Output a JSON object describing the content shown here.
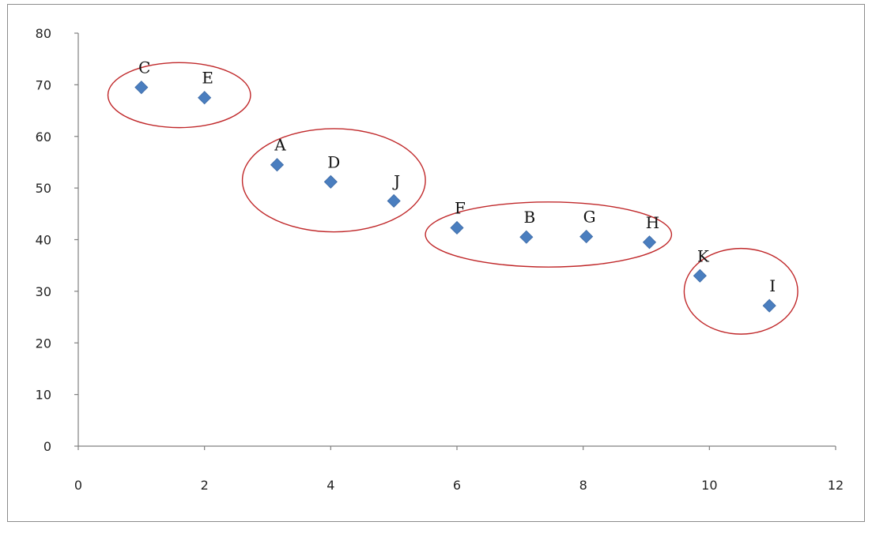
{
  "chart_data": {
    "type": "scatter",
    "xlim": [
      0,
      12
    ],
    "ylim": [
      0,
      80
    ],
    "x_ticks": [
      0,
      2,
      4,
      6,
      8,
      10,
      12
    ],
    "y_ticks": [
      0,
      10,
      20,
      30,
      40,
      50,
      60,
      70,
      80
    ],
    "grid": false,
    "legend": "none",
    "marker": "diamond",
    "marker_color": "#4a7ebf",
    "series": [
      {
        "points": [
          {
            "label": "C",
            "x": 1.0,
            "y": 69.5
          },
          {
            "label": "E",
            "x": 2.0,
            "y": 67.5
          },
          {
            "label": "A",
            "x": 3.15,
            "y": 54.5
          },
          {
            "label": "D",
            "x": 4.0,
            "y": 51.2
          },
          {
            "label": "J",
            "x": 5.0,
            "y": 47.5
          },
          {
            "label": "F",
            "x": 6.0,
            "y": 42.3
          },
          {
            "label": "B",
            "x": 7.1,
            "y": 40.5
          },
          {
            "label": "G",
            "x": 8.05,
            "y": 40.6
          },
          {
            "label": "H",
            "x": 9.05,
            "y": 39.5
          },
          {
            "label": "K",
            "x": 9.85,
            "y": 33.0
          },
          {
            "label": "I",
            "x": 10.95,
            "y": 27.2
          }
        ]
      }
    ],
    "annotations": {
      "cluster_color": "#c0282a",
      "clusters": [
        {
          "members": [
            "C",
            "E"
          ],
          "cx": 1.6,
          "cy": 68.0,
          "rx": 1.13,
          "ry": 6.3
        },
        {
          "members": [
            "A",
            "D",
            "J"
          ],
          "cx": 4.05,
          "cy": 51.5,
          "rx": 1.45,
          "ry": 10.0
        },
        {
          "members": [
            "F",
            "B",
            "G",
            "H"
          ],
          "cx": 7.45,
          "cy": 41.0,
          "rx": 1.95,
          "ry": 6.3
        },
        {
          "members": [
            "K",
            "I"
          ],
          "cx": 10.5,
          "cy": 30.0,
          "rx": 0.9,
          "ry": 8.3
        }
      ]
    }
  }
}
